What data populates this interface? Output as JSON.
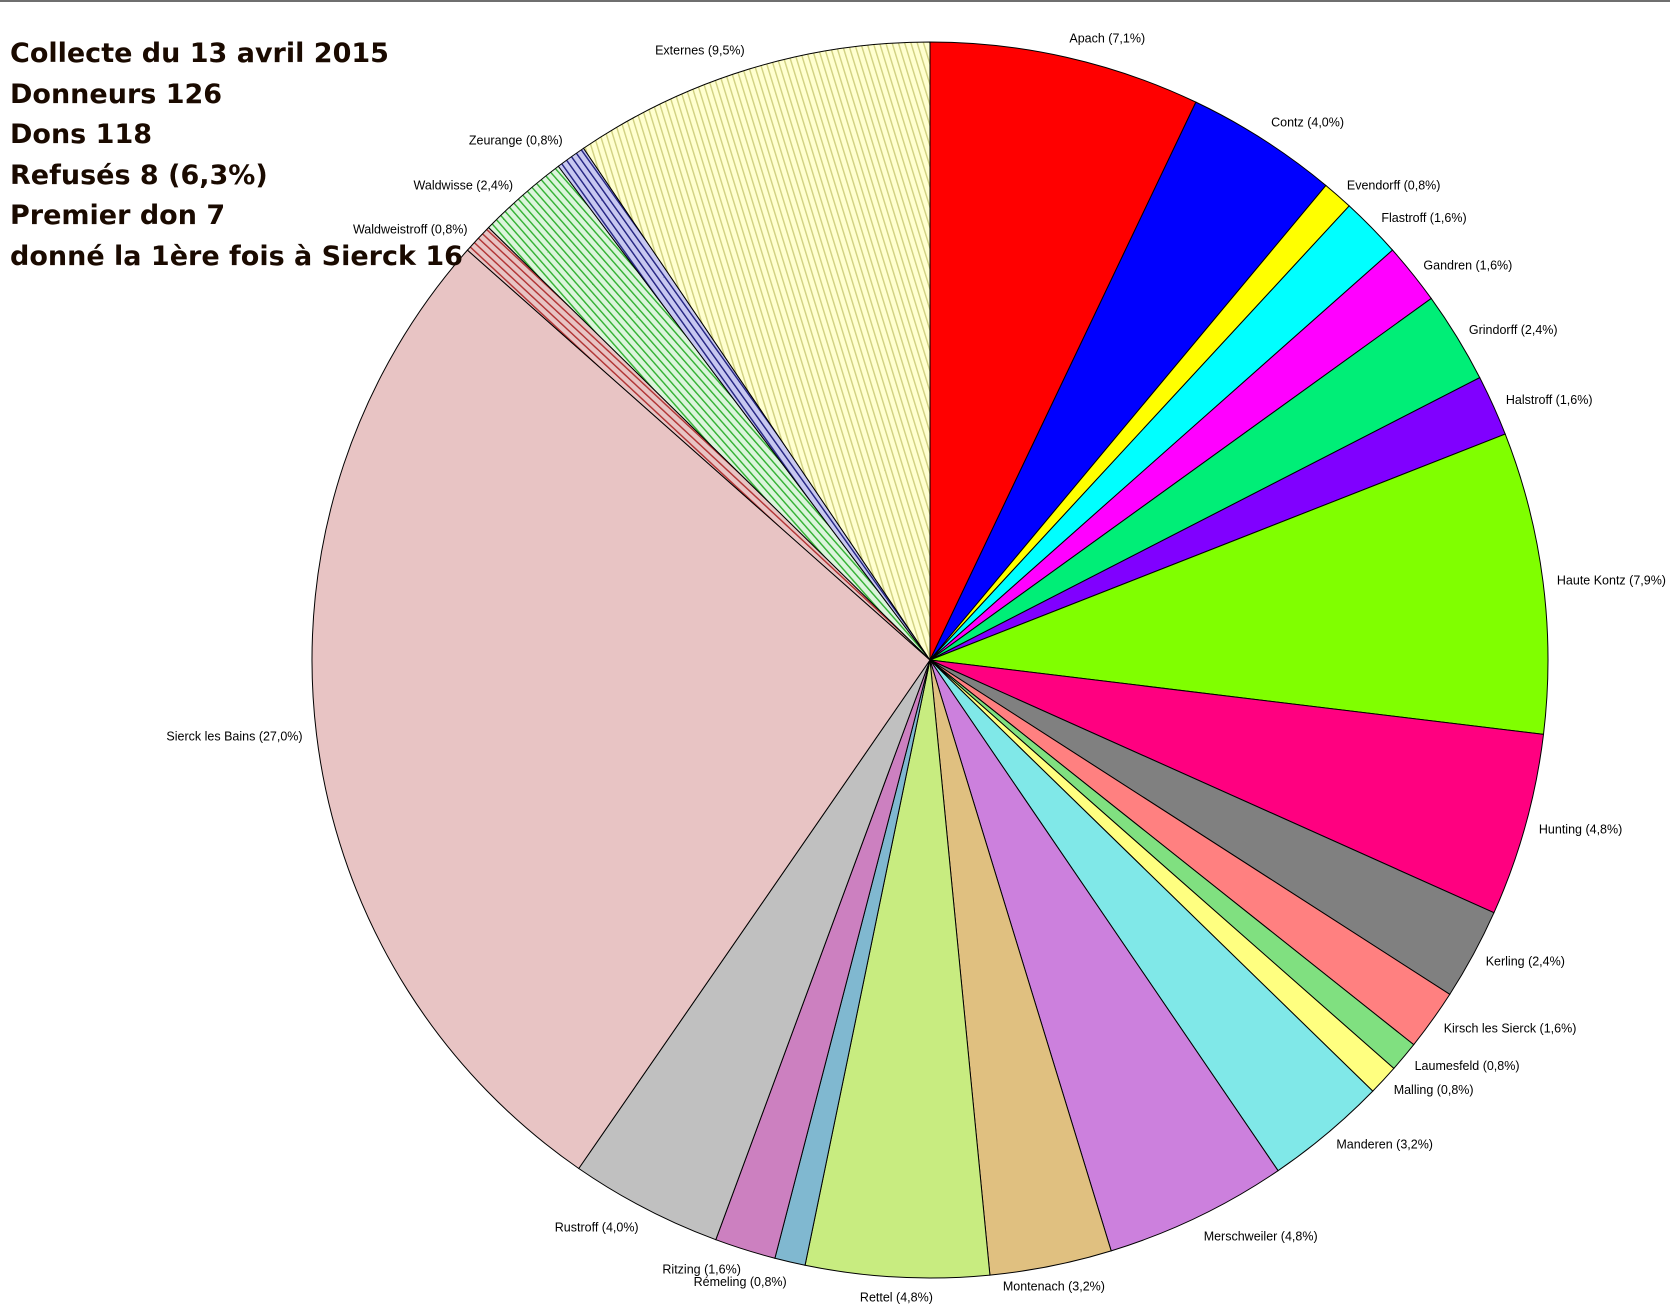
{
  "stats": [
    "Collecte du 13 avril 2015",
    "Donneurs  126",
    "Dons  118",
    "Refusés  8 (6,3%)",
    "Premier don  7",
    "donné la 1ère fois à Sierck 16"
  ],
  "chart_data": {
    "type": "pie",
    "start": "12 o'clock",
    "direction": "clockwise",
    "slices": [
      {
        "label": "Apach (7,1%)",
        "name": "Apach",
        "value": 7.1,
        "color": "#ff0000"
      },
      {
        "label": "Contz (4,0%)",
        "name": "Contz",
        "value": 4.0,
        "color": "#0000ff"
      },
      {
        "label": "Evendorff (0,8%)",
        "name": "Evendorff",
        "value": 0.8,
        "color": "#ffff00"
      },
      {
        "label": "Flastroff (1,6%)",
        "name": "Flastroff",
        "value": 1.6,
        "color": "#00ffff"
      },
      {
        "label": "Gandren (1,6%)",
        "name": "Gandren",
        "value": 1.6,
        "color": "#ff00ff"
      },
      {
        "label": "Grindorff (2,4%)",
        "name": "Grindorff",
        "value": 2.4,
        "color": "#00ee77"
      },
      {
        "label": "Halstroff (1,6%)",
        "name": "Halstroff",
        "value": 1.6,
        "color": "#8000ff"
      },
      {
        "label": "Haute Kontz (7,9%)",
        "name": "Haute Kontz",
        "value": 7.9,
        "color": "#80ff00"
      },
      {
        "label": "Hunting (4,8%)",
        "name": "Hunting",
        "value": 4.8,
        "color": "#ff0080"
      },
      {
        "label": "Kerling (2,4%)",
        "name": "Kerling",
        "value": 2.4,
        "color": "#808080"
      },
      {
        "label": "Kirsch les Sierck (1,6%)",
        "name": "Kirsch les Sierck",
        "value": 1.6,
        "color": "#ff8080"
      },
      {
        "label": "Laumesfeld (0,8%)",
        "name": "Laumesfeld",
        "value": 0.8,
        "color": "#80e080"
      },
      {
        "label": "Malling (0,8%)",
        "name": "Malling",
        "value": 0.8,
        "color": "#ffff80"
      },
      {
        "label": "Manderen (3,2%)",
        "name": "Manderen",
        "value": 3.2,
        "color": "#80e8e8"
      },
      {
        "label": "Merschweiler (4,8%)",
        "name": "Merschweiler",
        "value": 4.8,
        "color": "#cc80dd"
      },
      {
        "label": "Montenach (3,2%)",
        "name": "Montenach",
        "value": 3.2,
        "color": "#e0c080"
      },
      {
        "label": "Rettel (4,8%)",
        "name": "Rettel",
        "value": 4.8,
        "color": "#c8ec80"
      },
      {
        "label": "Rémeling (0,8%)",
        "name": "Rémeling",
        "value": 0.8,
        "color": "#80b8d0"
      },
      {
        "label": "Ritzing (1,6%)",
        "name": "Ritzing",
        "value": 1.6,
        "color": "#cc80c0"
      },
      {
        "label": "Rustroff (4,0%)",
        "name": "Rustroff",
        "value": 4.0,
        "color": "#c0c0c0"
      },
      {
        "label": "Sierck les Bains (27,0%)",
        "name": "Sierck les Bains",
        "value": 27.0,
        "color": "#e8c4c4"
      },
      {
        "label": "Waldweistroff (0,8%)",
        "name": "Waldweistroff",
        "value": 0.8,
        "color": "#e8c4c4",
        "pattern": "stripes",
        "stripe_color": "#b03030"
      },
      {
        "label": "Waldwisse (2,4%)",
        "name": "Waldwisse",
        "value": 2.4,
        "color": "#dcf5dc",
        "pattern": "stripes",
        "stripe_color": "#30b030"
      },
      {
        "label": "Zeurange (0,8%)",
        "name": "Zeurange",
        "value": 0.8,
        "color": "#c8c8f0",
        "pattern": "stripes",
        "stripe_color": "#202080"
      },
      {
        "label": "Externes (9,5%)",
        "name": "Externes",
        "value": 9.5,
        "color": "#ffffd0",
        "pattern": "stripes",
        "stripe_color": "#d0d080"
      }
    ]
  }
}
